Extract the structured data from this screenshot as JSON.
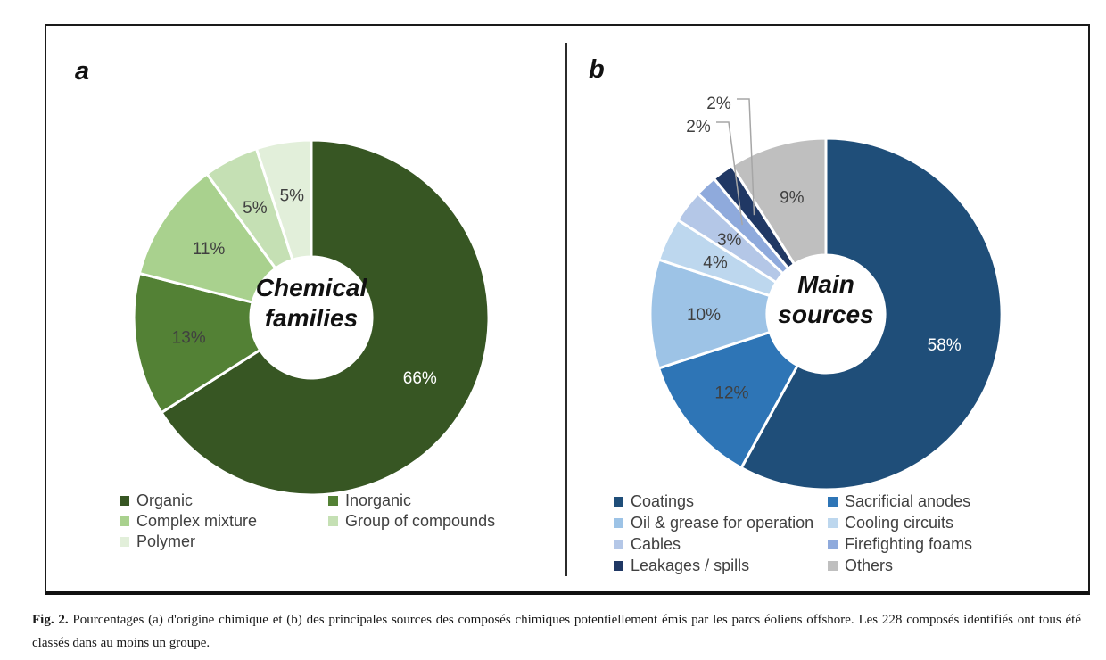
{
  "chart_data": [
    {
      "type": "pie",
      "donut": true,
      "start": "top",
      "direction": "clockwise",
      "panel_label": "a",
      "title": "Chemical families",
      "title_lines": [
        "Chemical",
        "families"
      ],
      "legend_position": "bottom",
      "slices": [
        {
          "label": "Organic",
          "value": 66,
          "pct_label": "66%",
          "color": "#375623"
        },
        {
          "label": "Inorganic",
          "value": 13,
          "pct_label": "13%",
          "color": "#538135"
        },
        {
          "label": "Complex mixture",
          "value": 11,
          "pct_label": "11%",
          "color": "#A9D18E"
        },
        {
          "label": "Group of compounds",
          "value": 5,
          "pct_label": "5%",
          "color": "#C5E0B4"
        },
        {
          "label": "Polymer",
          "value": 5,
          "pct_label": "5%",
          "color": "#E2EFDA"
        }
      ]
    },
    {
      "type": "pie",
      "donut": true,
      "start": "top",
      "direction": "clockwise",
      "panel_label": "b",
      "title": "Main sources",
      "title_lines": [
        "Main",
        "sources"
      ],
      "legend_position": "bottom",
      "slices": [
        {
          "label": "Coatings",
          "value": 58,
          "pct_label": "58%",
          "color": "#1F4E79"
        },
        {
          "label": "Sacrificial anodes",
          "value": 12,
          "pct_label": "12%",
          "color": "#2E75B6"
        },
        {
          "label": "Oil & grease for operation",
          "value": 10,
          "pct_label": "10%",
          "color": "#9DC3E6"
        },
        {
          "label": "Cooling circuits",
          "value": 4,
          "pct_label": "4%",
          "color": "#BDD7EE"
        },
        {
          "label": "Cables",
          "value": 3,
          "pct_label": "3%",
          "color": "#B4C7E7"
        },
        {
          "label": "Firefighting foams",
          "value": 2,
          "pct_label": "2%",
          "color": "#8FAADC",
          "label_outside": true,
          "label_pos": [
            783,
            141
          ]
        },
        {
          "label": "Leakages / spills",
          "value": 2,
          "pct_label": "2%",
          "color": "#203864",
          "label_outside": true,
          "label_pos": [
            806,
            115
          ]
        },
        {
          "label": "Others",
          "value": 9,
          "pct_label": "9%",
          "color": "#BFBFBF"
        }
      ]
    }
  ],
  "colors": {
    "pct_label_dark": "#404040",
    "pct_label_light": "#FFFFFF",
    "leader_line": "#A6A6A6",
    "legend_text": "#404040",
    "border": "#1a1a1a"
  },
  "caption": {
    "prefix": "Fig. 2.",
    "text": " Pourcentages (a) d'origine chimique et (b) des principales sources des composés chimiques potentiellement émis par les parcs éoliens offshore. Les 228 composés identifiés ont tous été classés dans au moins un groupe."
  }
}
